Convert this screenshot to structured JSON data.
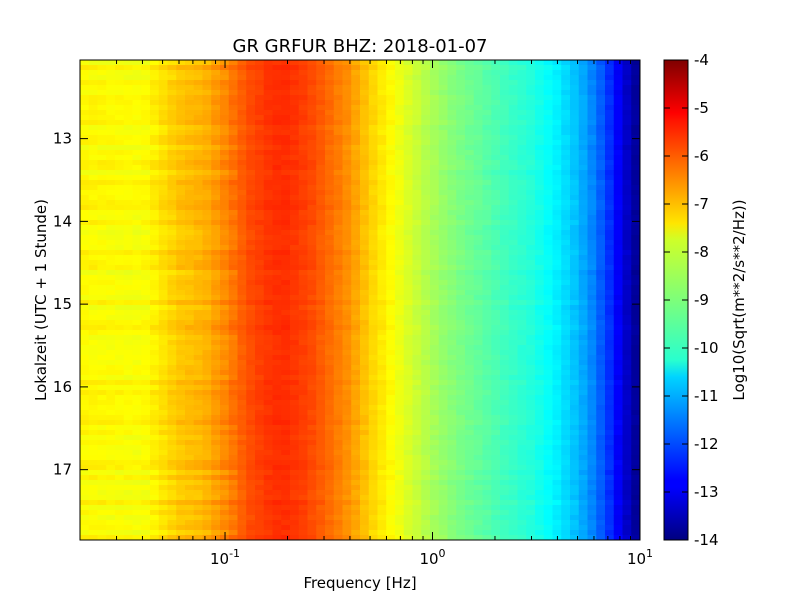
{
  "chart_data": {
    "type": "heatmap",
    "title": "GR GRFUR BHZ: 2018-01-07",
    "xlabel": "Frequency [Hz]",
    "ylabel": "Lokalzeit (UTC + 1 Stunde)",
    "colorbar_label": "Log10(Sqrt(m**2/s**2/Hz))",
    "x_scale": "log",
    "xlim": [
      0.02,
      10
    ],
    "ylim": [
      17.85,
      12.05
    ],
    "clim": [
      -14,
      -4
    ],
    "colormap": "jet",
    "x_ticks": [
      {
        "value": 0.1,
        "base": "10",
        "exp": "-1"
      },
      {
        "value": 1,
        "base": "10",
        "exp": "0"
      },
      {
        "value": 10,
        "base": "10",
        "exp": "1"
      }
    ],
    "y_ticks": [
      "13",
      "14",
      "15",
      "16",
      "17"
    ],
    "colorbar_ticks": [
      "-4",
      "-5",
      "-6",
      "-7",
      "-8",
      "-9",
      "-10",
      "-11",
      "-12",
      "-13",
      "-14"
    ],
    "psd_profile": {
      "frequency_hz": [
        0.02,
        0.04,
        0.06,
        0.08,
        0.1,
        0.13,
        0.17,
        0.2,
        0.25,
        0.3,
        0.4,
        0.5,
        0.65,
        0.8,
        1.0,
        1.3,
        1.7,
        2.2,
        3.0,
        4.0,
        5.0,
        6.0,
        7.0,
        8.0,
        9.0,
        10.0
      ],
      "value": [
        -7.7,
        -7.8,
        -7.2,
        -7.0,
        -6.6,
        -6.0,
        -5.7,
        -5.7,
        -5.9,
        -6.2,
        -6.7,
        -7.3,
        -7.8,
        -8.2,
        -8.6,
        -9.0,
        -9.3,
        -9.6,
        -9.9,
        -10.4,
        -10.9,
        -11.5,
        -12.2,
        -12.9,
        -13.5,
        -13.9
      ]
    },
    "time_range_hours": [
      12.05,
      17.85
    ]
  }
}
